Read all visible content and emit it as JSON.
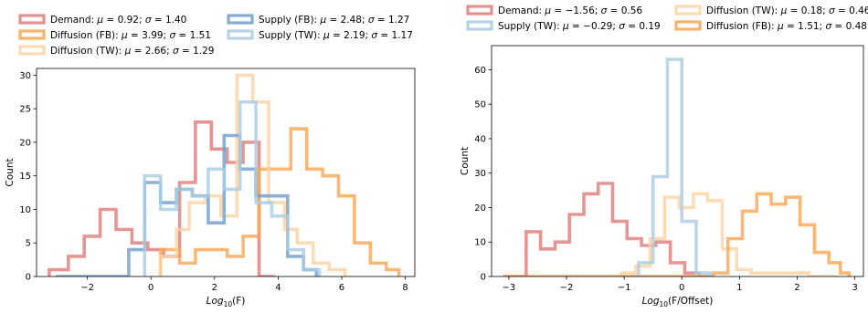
{
  "colors": {
    "demand": "#e07b7b",
    "diffusion_fb": "#f7a654",
    "diffusion_tw": "#fbd3a5",
    "supply_fb": "#6e9fcb",
    "supply_tw": "#a9cde5"
  },
  "chart_data": [
    {
      "type": "histogram",
      "xlabel": "Log10(F)",
      "ylabel": "Count",
      "xlim": [
        -3.6,
        8.3
      ],
      "ylim": [
        0,
        31
      ],
      "xticks": [
        -2,
        0,
        2,
        4,
        6,
        8
      ],
      "yticks": [
        0,
        5,
        10,
        15,
        20,
        25,
        30
      ],
      "legend_placement": "top (outside, two columns)",
      "series": [
        {
          "key": "demand",
          "name": "Demand: μ = 0.92; σ = 1.40",
          "color": "#e07b7b",
          "edges": [
            -3.2,
            -2.6,
            -2.1,
            -1.6,
            -1.1,
            -0.6,
            -0.1,
            0.4,
            0.9,
            1.4,
            1.9,
            2.4,
            2.9,
            3.4,
            3.9
          ],
          "counts": [
            1,
            3,
            6,
            10,
            7,
            5,
            4,
            3,
            14,
            23,
            19,
            17,
            20,
            0
          ]
        },
        {
          "key": "diffusion_fb",
          "name": "Diffusion (FB): μ = 3.99; σ = 1.51",
          "color": "#f7a654",
          "edges": [
            0.3,
            0.9,
            1.4,
            1.9,
            2.4,
            2.9,
            3.4,
            3.9,
            4.4,
            4.9,
            5.4,
            5.9,
            6.4,
            6.9,
            7.4,
            7.8
          ],
          "counts": [
            4,
            2,
            4,
            4,
            3,
            6,
            16,
            16,
            22,
            16,
            15,
            12,
            5,
            2,
            1
          ]
        },
        {
          "key": "diffusion_tw",
          "name": "Diffusion (TW): μ = 2.66; σ = 1.29",
          "color": "#fbd3a5",
          "edges": [
            0.3,
            0.8,
            1.2,
            1.7,
            2.2,
            2.7,
            3.2,
            3.7,
            4.2,
            4.6,
            5.1,
            5.6,
            6.1
          ],
          "counts": [
            3,
            7,
            11,
            12,
            9,
            30,
            26,
            11,
            7,
            5,
            2,
            1
          ]
        },
        {
          "key": "supply_fb",
          "name": "Supply (FB): μ = 2.48; σ = 1.27",
          "color": "#6e9fcb",
          "edges": [
            -3.0,
            -0.7,
            -0.2,
            0.3,
            0.8,
            1.3,
            1.8,
            2.3,
            2.8,
            3.3,
            3.8,
            4.3,
            4.8,
            5.2
          ],
          "counts": [
            0,
            4,
            14,
            11,
            13,
            12,
            8,
            21,
            16,
            12,
            12,
            3,
            1
          ]
        },
        {
          "key": "supply_tw",
          "name": "Supply (TW): μ = 2.19; σ = 1.17",
          "color": "#a9cde5",
          "edges": [
            -0.2,
            0.3,
            0.8,
            1.3,
            1.8,
            2.3,
            2.8,
            3.3,
            3.8,
            4.3,
            4.8,
            5.3
          ],
          "counts": [
            15,
            10,
            13,
            12,
            16,
            13,
            26,
            11,
            9,
            4,
            1
          ]
        }
      ]
    },
    {
      "type": "histogram",
      "xlabel": "Log10(F/Offset)",
      "ylabel": "Count",
      "xlim": [
        -3.3,
        3.15
      ],
      "ylim": [
        0,
        67
      ],
      "xticks": [
        -3,
        -2,
        -1,
        0,
        1,
        2,
        3
      ],
      "yticks": [
        0,
        10,
        20,
        30,
        40,
        50,
        60
      ],
      "legend_placement": "top (outside, two columns)",
      "series": [
        {
          "key": "demand",
          "name": "Demand: μ = −1.56; σ = 0.56",
          "color": "#e07b7b",
          "edges": [
            -3.1,
            -2.7,
            -2.45,
            -2.2,
            -1.95,
            -1.7,
            -1.45,
            -1.2,
            -0.95,
            -0.7,
            -0.45,
            -0.2,
            0.05,
            0.3,
            0.55
          ],
          "counts": [
            0,
            13,
            8,
            10,
            18,
            24,
            27,
            16,
            11,
            9,
            10,
            4,
            1,
            0
          ]
        },
        {
          "key": "supply_tw",
          "name": "Supply (TW): μ = −0.29; σ = 0.19",
          "color": "#a9cde5",
          "edges": [
            -0.75,
            -0.5,
            -0.25,
            0.0,
            0.25,
            0.5
          ],
          "counts": [
            4,
            29,
            63,
            16,
            1
          ]
        },
        {
          "key": "diffusion_tw",
          "name": "Diffusion (TW): μ = 0.18; σ = 0.46",
          "color": "#fbd3a5",
          "edges": [
            -1.05,
            -0.8,
            -0.55,
            -0.3,
            -0.05,
            0.2,
            0.45,
            0.7,
            0.95,
            1.2,
            1.45,
            1.7,
            1.95,
            2.2,
            2.45,
            2.7
          ],
          "counts": [
            1,
            3,
            11,
            23,
            20,
            24,
            22,
            8,
            2,
            1,
            1,
            1,
            1,
            0,
            0
          ]
        },
        {
          "key": "diffusion_fb",
          "name": "Diffusion (FB): μ = 1.51; σ = 0.48",
          "color": "#f7a654",
          "edges": [
            -3.1,
            0.55,
            0.8,
            1.05,
            1.3,
            1.55,
            1.8,
            2.05,
            2.3,
            2.55,
            2.75,
            2.9
          ],
          "counts": [
            0,
            1,
            11,
            19,
            24,
            21,
            23,
            15,
            7,
            4,
            1
          ]
        }
      ]
    }
  ]
}
